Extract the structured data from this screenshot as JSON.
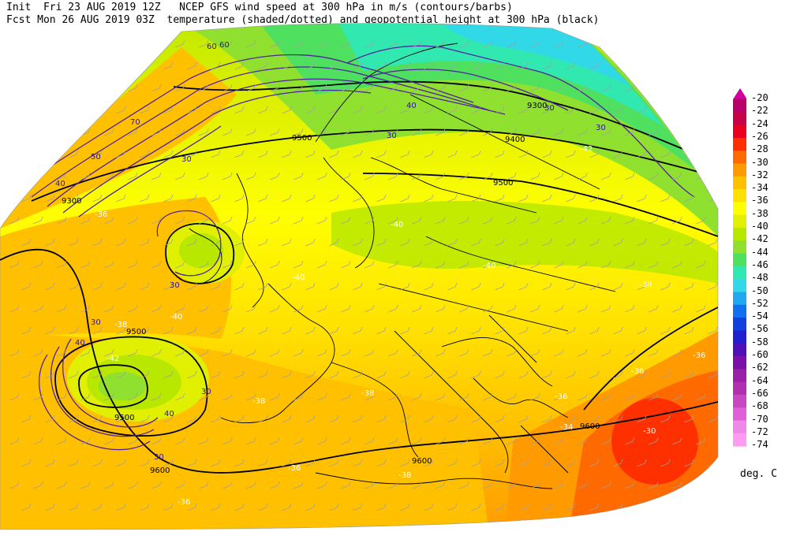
{
  "header": {
    "line1": "Init  Fri 23 AUG 2019 12Z   NCEP GFS wind speed at 300 hPa in m/s (contours/barbs)",
    "line2": "Fcst Mon 26 AUG 2019 03Z  temperature (shaded/dotted) and geopotential height at 300 hPa (black)"
  },
  "colorbar": {
    "labels": [
      "-20",
      "-22",
      "-24",
      "-26",
      "-28",
      "-30",
      "-32",
      "-34",
      "-36",
      "-38",
      "-40",
      "-42",
      "-44",
      "-46",
      "-48",
      "-50",
      "-52",
      "-54",
      "-56",
      "-58",
      "-60",
      "-62",
      "-64",
      "-66",
      "-68",
      "-70",
      "-72",
      "-74"
    ],
    "colors": [
      "#d0009c",
      "#b8006a",
      "#c80048",
      "#e8001e",
      "#ff3000",
      "#ff6a00",
      "#ff9a00",
      "#ffc000",
      "#ffe000",
      "#ffff00",
      "#e0f000",
      "#b8e800",
      "#90e030",
      "#50e060",
      "#30e8b0",
      "#30d8e8",
      "#20a8f0",
      "#1070f0",
      "#1040e0",
      "#2020d0",
      "#5010b8",
      "#7a10a8",
      "#9a20a8",
      "#b030b0",
      "#c848c0",
      "#e060d8",
      "#f088e8",
      "#ff9cf0"
    ],
    "unit_label": "deg. C"
  },
  "map": {
    "height_labels": [
      "9300",
      "9400",
      "9500",
      "9500",
      "9600",
      "9600",
      "9600",
      "9500",
      "9300",
      "9500"
    ],
    "wind_labels": [
      "30",
      "40",
      "50",
      "60",
      "70",
      "30",
      "40",
      "30",
      "30",
      "40",
      "30",
      "30",
      "40",
      "60",
      "30",
      "30"
    ],
    "temp_labels": [
      "-36",
      "-38",
      "-40",
      "-40",
      "-40",
      "-42",
      "-38",
      "-36",
      "-38",
      "-36",
      "-38",
      "-36",
      "-34",
      "-30",
      "-36",
      "-38",
      "-42",
      "-40",
      "-36"
    ]
  }
}
